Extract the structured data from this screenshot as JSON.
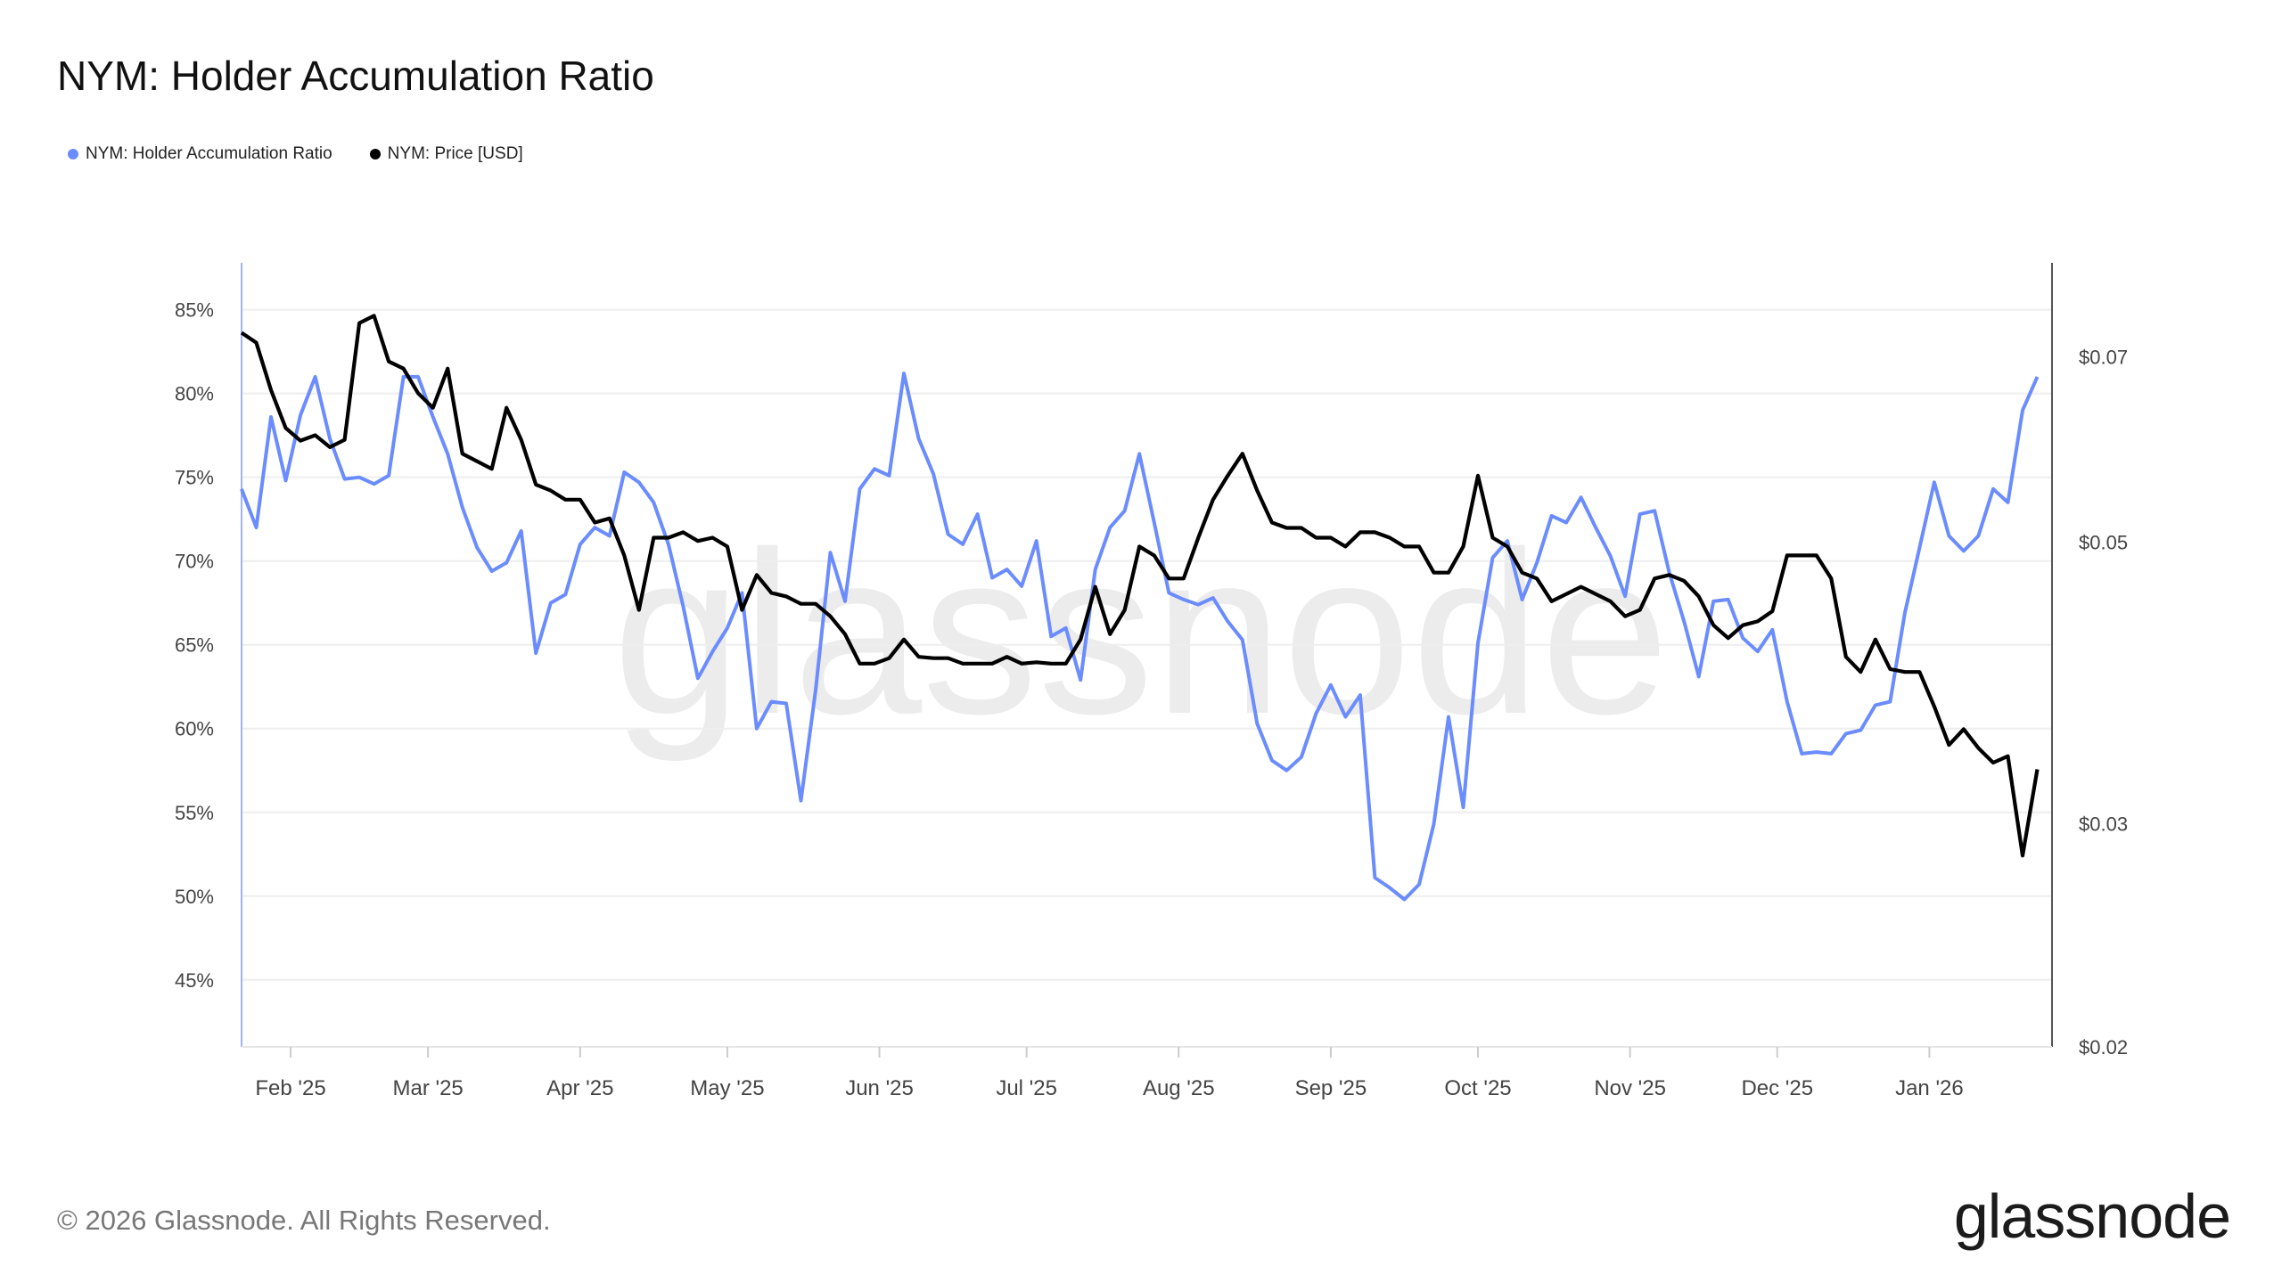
{
  "title": "NYM: Holder Accumulation Ratio",
  "footer": "© 2026 Glassnode. All Rights Reserved.",
  "logo": "glassnode",
  "watermark": "glassnode",
  "chart_data": {
    "type": "line",
    "title": "NYM: Holder Accumulation Ratio",
    "legend_placement": "top-left",
    "grid": true,
    "x_tick_labels": [
      "Feb '25",
      "Mar '25",
      "Apr '25",
      "May '25",
      "Jun '25",
      "Jul '25",
      "Aug '25",
      "Sep '25",
      "Oct '25",
      "Nov '25",
      "Dec '25",
      "Jan '26"
    ],
    "x_tick_dates": [
      "2025-02-01",
      "2025-03-01",
      "2025-04-01",
      "2025-05-01",
      "2025-06-01",
      "2025-07-01",
      "2025-08-01",
      "2025-09-01",
      "2025-10-01",
      "2025-11-01",
      "2025-12-01",
      "2026-01-01"
    ],
    "xlim": [
      "2025-01-22",
      "2026-01-26"
    ],
    "y_left": {
      "scale": "linear",
      "ylim": [
        41,
        87.8
      ],
      "ticks": [
        45,
        50,
        55,
        60,
        65,
        70,
        75,
        80,
        85
      ],
      "tick_labels": [
        "45%",
        "50%",
        "55%",
        "60%",
        "65%",
        "70%",
        "75%",
        "80%",
        "85%"
      ]
    },
    "y_right": {
      "scale": "log",
      "ylim": [
        0.02,
        0.083
      ],
      "ticks": [
        0.02,
        0.03,
        0.05,
        0.07
      ],
      "tick_labels": [
        "$0.02",
        "$0.03",
        "$0.05",
        "$0.07"
      ]
    },
    "x": [
      "2025-01-22",
      "2025-01-25",
      "2025-01-28",
      "2025-01-31",
      "2025-02-03",
      "2025-02-06",
      "2025-02-09",
      "2025-02-12",
      "2025-02-15",
      "2025-02-18",
      "2025-02-21",
      "2025-02-24",
      "2025-02-27",
      "2025-03-02",
      "2025-03-05",
      "2025-03-08",
      "2025-03-11",
      "2025-03-14",
      "2025-03-17",
      "2025-03-20",
      "2025-03-23",
      "2025-03-26",
      "2025-03-29",
      "2025-04-01",
      "2025-04-04",
      "2025-04-07",
      "2025-04-10",
      "2025-04-13",
      "2025-04-16",
      "2025-04-19",
      "2025-04-22",
      "2025-04-25",
      "2025-04-28",
      "2025-05-01",
      "2025-05-04",
      "2025-05-07",
      "2025-05-10",
      "2025-05-13",
      "2025-05-16",
      "2025-05-19",
      "2025-05-22",
      "2025-05-25",
      "2025-05-28",
      "2025-05-31",
      "2025-06-03",
      "2025-06-06",
      "2025-06-09",
      "2025-06-12",
      "2025-06-15",
      "2025-06-18",
      "2025-06-21",
      "2025-06-24",
      "2025-06-27",
      "2025-06-30",
      "2025-07-03",
      "2025-07-06",
      "2025-07-09",
      "2025-07-12",
      "2025-07-15",
      "2025-07-18",
      "2025-07-21",
      "2025-07-24",
      "2025-07-27",
      "2025-07-30",
      "2025-08-02",
      "2025-08-05",
      "2025-08-08",
      "2025-08-11",
      "2025-08-14",
      "2025-08-17",
      "2025-08-20",
      "2025-08-23",
      "2025-08-26",
      "2025-08-29",
      "2025-09-01",
      "2025-09-04",
      "2025-09-07",
      "2025-09-10",
      "2025-09-13",
      "2025-09-16",
      "2025-09-19",
      "2025-09-22",
      "2025-09-25",
      "2025-09-28",
      "2025-10-01",
      "2025-10-04",
      "2025-10-07",
      "2025-10-10",
      "2025-10-13",
      "2025-10-16",
      "2025-10-19",
      "2025-10-22",
      "2025-10-25",
      "2025-10-28",
      "2025-10-31",
      "2025-11-03",
      "2025-11-06",
      "2025-11-09",
      "2025-11-12",
      "2025-11-15",
      "2025-11-18",
      "2025-11-21",
      "2025-11-24",
      "2025-11-27",
      "2025-11-30",
      "2025-12-03",
      "2025-12-06",
      "2025-12-09",
      "2025-12-12",
      "2025-12-15",
      "2025-12-18",
      "2025-12-21",
      "2025-12-24",
      "2025-12-27",
      "2025-12-30",
      "2026-01-02",
      "2026-01-05",
      "2026-01-08",
      "2026-01-11",
      "2026-01-14",
      "2026-01-17",
      "2026-01-20",
      "2026-01-23"
    ],
    "series": [
      {
        "name": "NYM: Holder Accumulation Ratio",
        "axis": "left",
        "color": "#6b8cff",
        "values": [
          74.3,
          72,
          78.6,
          74.8,
          78.7,
          81.0,
          77.3,
          74.9,
          75.0,
          74.6,
          75.1,
          81.0,
          81.0,
          78.6,
          76.4,
          73.2,
          70.8,
          69.4,
          69.9,
          71.8,
          64.5,
          67.5,
          68,
          71,
          72,
          71.5,
          75.3,
          74.7,
          73.5,
          71.0,
          67.3,
          63,
          64.6,
          66,
          68.1,
          60,
          61.6,
          61.5,
          55.7,
          62.3,
          70.5,
          67.6,
          74.3,
          75.5,
          75.1,
          81.2,
          77.3,
          75.2,
          71.6,
          71.0,
          72.8,
          69.0,
          69.5,
          68.5,
          71.2,
          65.5,
          66.0,
          62.9,
          69.5,
          72,
          73.0,
          76.4,
          72.3,
          68.1,
          67.7,
          67.4,
          67.8,
          66.4,
          65.3,
          60.3,
          58.1,
          57.5,
          58.3,
          60.9,
          62.6,
          60.7,
          62.0,
          51.1,
          50.5,
          49.8,
          50.7,
          54.3,
          60.7,
          55.3,
          65.1,
          70.2,
          71.2,
          67.7,
          69.9,
          72.7,
          72.3,
          73.8,
          72,
          70.3,
          67.9,
          72.8,
          73.0,
          69.3,
          66.4,
          63.1,
          67.6,
          67.7,
          65.4,
          64.6,
          65.9,
          61.6,
          58.5,
          58.6,
          58.5,
          59.7,
          59.9,
          61.4,
          61.6,
          66.9,
          70.8,
          74.7,
          71.5,
          70.6,
          71.5,
          74.3,
          73.5,
          79.0,
          81.0
        ]
      },
      {
        "name": "NYM: Price [USD]",
        "axis": "right",
        "color": "#000000",
        "values": [
          0.0731,
          0.0718,
          0.0659,
          0.0615,
          0.0601,
          0.0607,
          0.0594,
          0.0602,
          0.0744,
          0.0754,
          0.0694,
          0.0685,
          0.0655,
          0.0638,
          0.0685,
          0.0587,
          0.0579,
          0.0571,
          0.0638,
          0.0602,
          0.0555,
          0.0549,
          0.054,
          0.054,
          0.0518,
          0.0522,
          0.0488,
          0.0442,
          0.0504,
          0.0504,
          0.0509,
          0.0501,
          0.0504,
          0.0496,
          0.0442,
          0.0471,
          0.0456,
          0.0453,
          0.0447,
          0.0447,
          0.0437,
          0.0423,
          0.0401,
          0.0401,
          0.0405,
          0.0419,
          0.0406,
          0.0405,
          0.0405,
          0.0401,
          0.0401,
          0.0401,
          0.0406,
          0.0401,
          0.0402,
          0.0401,
          0.0401,
          0.0419,
          0.0461,
          0.0423,
          0.0442,
          0.0496,
          0.0488,
          0.0468,
          0.0468,
          0.0504,
          0.054,
          0.0564,
          0.0587,
          0.0549,
          0.0518,
          0.0513,
          0.0513,
          0.0504,
          0.0504,
          0.0496,
          0.0509,
          0.0509,
          0.0504,
          0.0496,
          0.0496,
          0.0473,
          0.0473,
          0.0496,
          0.0564,
          0.0504,
          0.0496,
          0.0473,
          0.0468,
          0.0449,
          0.0455,
          0.0461,
          0.0455,
          0.0449,
          0.0437,
          0.0442,
          0.0468,
          0.0471,
          0.0466,
          0.0453,
          0.043,
          0.042,
          0.043,
          0.0433,
          0.0441,
          0.0488,
          0.0488,
          0.0488,
          0.0468,
          0.0406,
          0.0395,
          0.0419,
          0.0397,
          0.0395,
          0.0395,
          0.0371,
          0.0346,
          0.0356,
          0.0344,
          0.0335,
          0.0339,
          0.0283,
          0.0331
        ]
      }
    ]
  }
}
